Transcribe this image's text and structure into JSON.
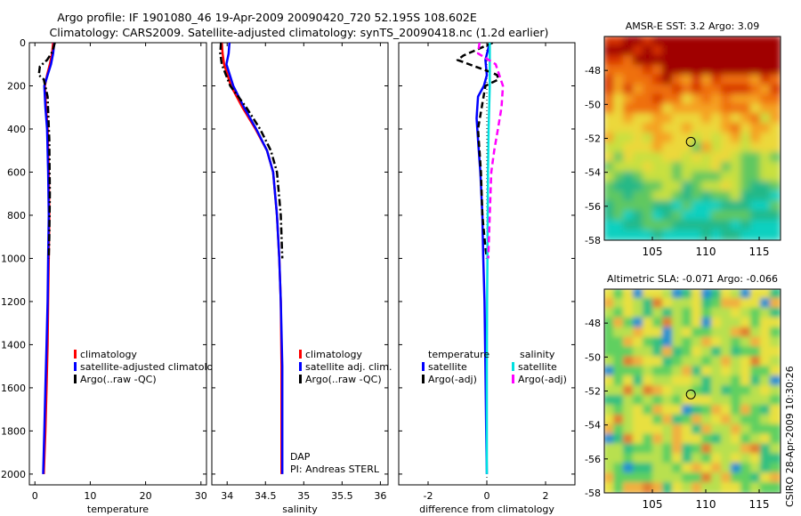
{
  "header": {
    "line1": "Argo profile: IF 1901080_46 19-Apr-2009 20090420_720 52.195S 108.602E",
    "line2": "Climatology: CARS2009. Satellite-adjusted climatology: synTS_20090418.nc (1.2d earlier)"
  },
  "side_note": "CSIRO 28-Apr-2009 10:30:26",
  "colors": {
    "climatology": "#ff0000",
    "satellite": "#0000ff",
    "argo": "#000000",
    "sal_satellite": "#00e0e0",
    "sal_argo": "#ff00ff"
  },
  "chart_data": [
    {
      "id": "temperature",
      "type": "line",
      "xlabel": "temperature",
      "ylabel": "",
      "xlim": [
        -1,
        31
      ],
      "ylim": [
        0,
        2050
      ],
      "y_reversed": true,
      "xticks": [
        0,
        10,
        20,
        30
      ],
      "yticks": [
        0,
        200,
        400,
        600,
        800,
        1000,
        1200,
        1400,
        1600,
        1800,
        2000
      ],
      "legend": [
        "climatology",
        "satellite-adjusted climatolog",
        "Argo(..raw -QC)"
      ],
      "series": [
        {
          "name": "climatology",
          "color": "#ff0000",
          "dash": "solid",
          "x": [
            3.3,
            3.1,
            2.7,
            2.2,
            1.8,
            2.0,
            2.3,
            2.5,
            2.6,
            2.5,
            2.4,
            2.3,
            2.1,
            1.9,
            1.6
          ],
          "y": [
            0,
            50,
            100,
            150,
            200,
            300,
            400,
            600,
            800,
            1000,
            1200,
            1400,
            1600,
            1800,
            2000
          ]
        },
        {
          "name": "satellite-adjusted climatology",
          "color": "#0000ff",
          "dash": "solid",
          "x": [
            3.5,
            3.3,
            2.9,
            2.3,
            1.7,
            1.9,
            2.2,
            2.4,
            2.5,
            2.4,
            2.3,
            2.1,
            1.9,
            1.7,
            1.5
          ],
          "y": [
            0,
            50,
            100,
            150,
            200,
            300,
            400,
            600,
            800,
            1000,
            1200,
            1400,
            1600,
            1800,
            2000
          ]
        },
        {
          "name": "Argo(..raw -QC)",
          "color": "#000000",
          "dash": "dashdot",
          "x": [
            3.6,
            3.2,
            2.2,
            0.9,
            0.7,
            1.6,
            2.3,
            2.6,
            2.7,
            2.6,
            2.5
          ],
          "y": [
            0,
            40,
            80,
            110,
            150,
            170,
            250,
            450,
            700,
            900,
            1000
          ]
        }
      ]
    },
    {
      "id": "salinity",
      "type": "line",
      "xlabel": "salinity",
      "xlim": [
        33.8,
        36.1
      ],
      "ylim": [
        0,
        2050
      ],
      "y_reversed": true,
      "xticks": [
        34,
        34.5,
        35,
        35.5,
        36
      ],
      "xticklabels": [
        "34",
        "34.5",
        "35",
        "35.5",
        "36"
      ],
      "legend": [
        "climatology",
        "satellite adj. clim.",
        "Argo(..raw -QC)"
      ],
      "note_line1": "DAP",
      "note_line2": "PI: Andreas STERL",
      "series": [
        {
          "name": "climatology",
          "color": "#ff0000",
          "dash": "solid",
          "x": [
            33.93,
            33.94,
            33.96,
            34.05,
            34.2,
            34.37,
            34.52,
            34.6,
            34.65,
            34.68,
            34.7,
            34.71,
            34.71,
            34.71
          ],
          "y": [
            0,
            50,
            100,
            200,
            300,
            400,
            500,
            600,
            800,
            1000,
            1200,
            1500,
            1800,
            2000
          ]
        },
        {
          "name": "satellite adj. clim.",
          "color": "#0000ff",
          "dash": "solid",
          "x": [
            34.03,
            34.02,
            33.99,
            34.08,
            34.22,
            34.38,
            34.52,
            34.6,
            34.65,
            34.68,
            34.7,
            34.72,
            34.72,
            34.72
          ],
          "y": [
            0,
            50,
            100,
            200,
            300,
            400,
            500,
            600,
            800,
            1000,
            1200,
            1500,
            1800,
            2000
          ]
        },
        {
          "name": "Argo(..raw -QC)",
          "color": "#000000",
          "dash": "dashdot",
          "x": [
            33.92,
            33.91,
            33.93,
            34.04,
            34.25,
            34.43,
            34.57,
            34.65,
            34.7,
            34.72
          ],
          "y": [
            0,
            50,
            100,
            200,
            300,
            400,
            500,
            600,
            800,
            1000
          ]
        }
      ]
    },
    {
      "id": "difference",
      "type": "line",
      "xlabel": "difference from climatology",
      "xlim": [
        -3.0,
        3.0
      ],
      "ylim": [
        0,
        2050
      ],
      "y_reversed": true,
      "xticks": [
        -2,
        0,
        2
      ],
      "legend_title_left": "temperature",
      "legend_title_right": "salinity",
      "legend_left": [
        "satellite",
        "Argo(-adj)"
      ],
      "legend_right": [
        "satellite",
        "Argo(-adj)"
      ],
      "series": [
        {
          "name": "temperature satellite",
          "color": "#0000ff",
          "dash": "solid",
          "x": [
            0.1,
            -0.05,
            0.0,
            -0.1,
            -0.3,
            -0.35,
            -0.3,
            -0.22,
            -0.15,
            -0.12,
            -0.08,
            -0.05,
            -0.02,
            0.0
          ],
          "y": [
            0,
            80,
            150,
            200,
            250,
            350,
            450,
            600,
            800,
            1000,
            1200,
            1500,
            1800,
            2000
          ]
        },
        {
          "name": "Argo(-adj) temperature",
          "color": "#000000",
          "dash": "dashed",
          "x": [
            0.2,
            -0.8,
            -1.0,
            -0.4,
            0.2,
            0.35,
            0.4,
            -0.05,
            -0.3,
            -0.2,
            -0.15,
            -0.05,
            0.0
          ],
          "y": [
            0,
            60,
            80,
            110,
            140,
            150,
            170,
            200,
            400,
            600,
            800,
            950,
            1000
          ]
        },
        {
          "name": "salinity satellite",
          "color": "#00e0e0",
          "dash": "solid",
          "x": [
            0.1,
            0.1,
            0.06,
            0.04,
            0.03,
            0.02,
            0.01,
            0.0,
            0.0,
            0.0
          ],
          "y": [
            0,
            200,
            400,
            600,
            800,
            1000,
            1200,
            1500,
            1800,
            2000
          ]
        },
        {
          "name": "salinity Argo(-adj)",
          "color": "#ff00ff",
          "dash": "dashed",
          "x": [
            -0.25,
            -0.3,
            0.3,
            0.55,
            0.5,
            0.38,
            0.25,
            0.15,
            0.1,
            0.05
          ],
          "y": [
            0,
            50,
            100,
            200,
            300,
            400,
            500,
            600,
            800,
            1000
          ]
        }
      ]
    },
    {
      "id": "sst_map",
      "type": "heatmap",
      "title": "AMSR-E SST: 3.2 Argo: 3.09",
      "xlim": [
        100.5,
        117
      ],
      "ylim": [
        -58,
        -46
      ],
      "xticks": [
        105,
        110,
        115
      ],
      "yticks": [
        -48,
        -50,
        -52,
        -54,
        -56,
        -58
      ],
      "marker": {
        "lon": 108.6,
        "lat": -52.2
      }
    },
    {
      "id": "sla_map",
      "type": "heatmap",
      "title": "Altimetric SLA: -0.071 Argo: -0.066",
      "xlim": [
        100.5,
        117
      ],
      "ylim": [
        -58,
        -46
      ],
      "xticks": [
        105,
        110,
        115
      ],
      "yticks": [
        -48,
        -50,
        -52,
        -54,
        -56,
        -58
      ],
      "marker": {
        "lon": 108.6,
        "lat": -52.2
      }
    }
  ]
}
